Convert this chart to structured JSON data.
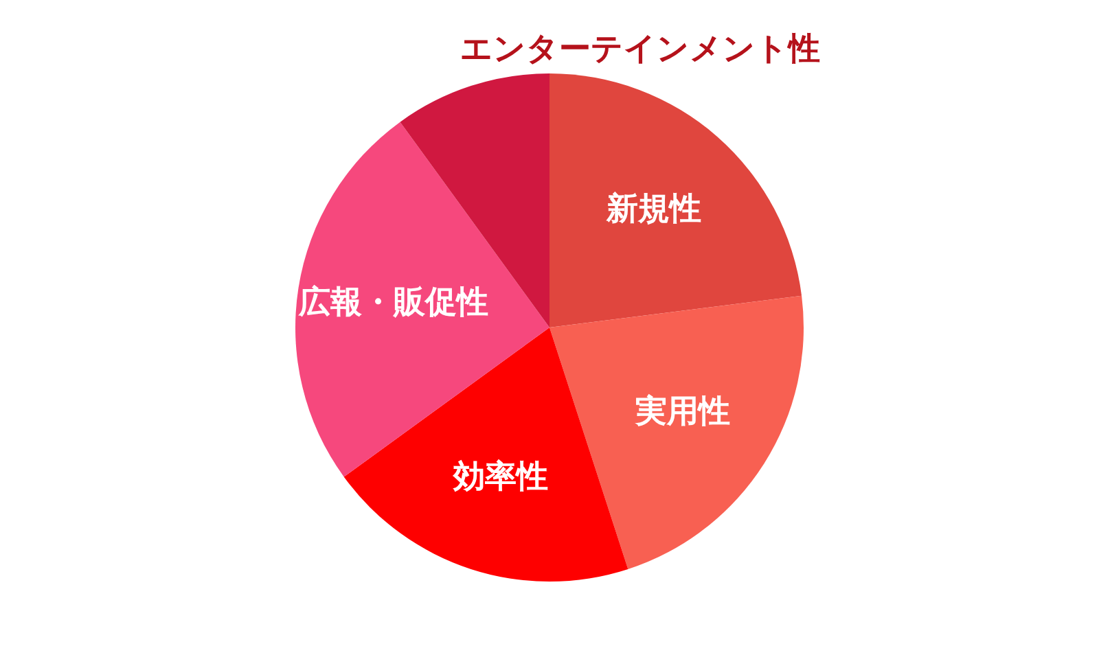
{
  "chart_data": {
    "type": "pie",
    "categories": [
      "新規性",
      "実用性",
      "効率性",
      "広報・販促性",
      "エンターテインメント性"
    ],
    "values": [
      23,
      22,
      20,
      25,
      10
    ],
    "colors": [
      "#e0463e",
      "#f86052",
      "#fe0000",
      "#f6487d",
      "#d01840"
    ]
  }
}
